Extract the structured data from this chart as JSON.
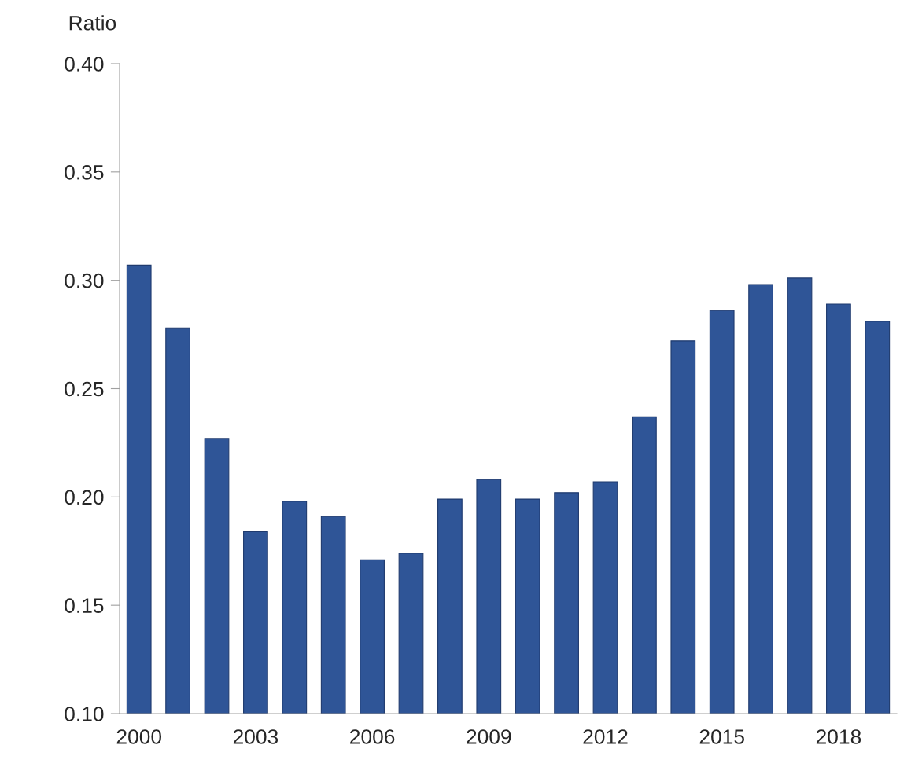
{
  "chart_data": {
    "type": "bar",
    "ylabel": "Ratio",
    "categories": [
      "2000",
      null,
      null,
      "2003",
      null,
      null,
      "2006",
      null,
      null,
      "2009",
      null,
      null,
      "2012",
      null,
      null,
      "2015",
      null,
      null,
      "2018",
      null
    ],
    "values": [
      0.307,
      0.278,
      0.227,
      0.184,
      0.198,
      0.191,
      0.171,
      0.174,
      0.199,
      0.208,
      0.199,
      0.202,
      0.207,
      0.237,
      0.272,
      0.286,
      0.298,
      0.301,
      0.289,
      0.281
    ],
    "color": "#2f5597",
    "ylim": [
      0.1,
      0.4
    ],
    "yticks": [
      {
        "value": 0.1,
        "label": "0.10"
      },
      {
        "value": 0.15,
        "label": "0.15"
      },
      {
        "value": 0.2,
        "label": "0.20"
      },
      {
        "value": 0.25,
        "label": "0.25"
      },
      {
        "value": 0.3,
        "label": "0.30"
      },
      {
        "value": 0.35,
        "label": "0.35"
      },
      {
        "value": 0.4,
        "label": "0.40"
      }
    ],
    "grid": false,
    "legend": false
  }
}
